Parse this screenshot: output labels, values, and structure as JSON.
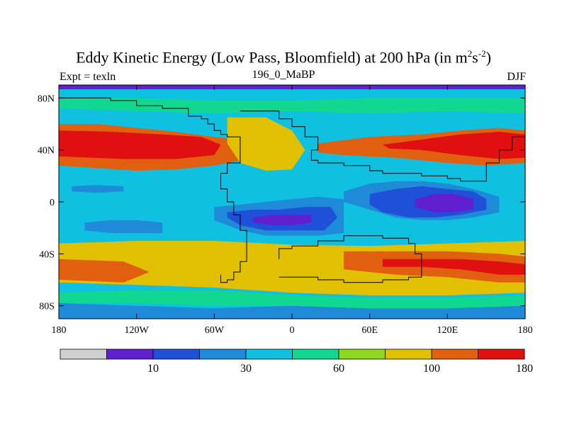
{
  "chart_data": {
    "type": "heatmap",
    "title_main": "Eddy Kinetic Energy (Low Pass, Bloomfield) at 200 hPa (in m",
    "title_units_sup1": "2",
    "title_units_s": "s",
    "title_units_sup2": "-2",
    "title_close": ")",
    "left_label": "Expt = texln",
    "center_label": "196_0_MaBP",
    "right_label": "DJF",
    "x_ticks": [
      {
        "value": -180,
        "label": "180"
      },
      {
        "value": -120,
        "label": "120W"
      },
      {
        "value": -60,
        "label": "60W"
      },
      {
        "value": 0,
        "label": "0"
      },
      {
        "value": 60,
        "label": "60E"
      },
      {
        "value": 120,
        "label": "120E"
      },
      {
        "value": 180,
        "label": "180"
      }
    ],
    "y_ticks": [
      {
        "value": 80,
        "label": "80N"
      },
      {
        "value": 40,
        "label": "40N"
      },
      {
        "value": 0,
        "label": "0"
      },
      {
        "value": -40,
        "label": "40S"
      },
      {
        "value": -80,
        "label": "80S"
      }
    ],
    "xlim": [
      -180,
      180
    ],
    "ylim": [
      -90,
      90
    ],
    "colorbar": {
      "colors": [
        "#d0d0d0",
        "#6020d0",
        "#1e50d8",
        "#1e8ad8",
        "#10c0e0",
        "#10d890",
        "#90d820",
        "#e0c000",
        "#e06010",
        "#e01010"
      ],
      "labels": [
        {
          "boundary": 2,
          "label": "10"
        },
        {
          "boundary": 4,
          "label": "30"
        },
        {
          "boundary": 6,
          "label": "60"
        },
        {
          "boundary": 8,
          "label": "100"
        },
        {
          "boundary": 10,
          "label": "180"
        }
      ]
    },
    "background_level": 4,
    "regions": [
      {
        "name": "nh-band-orange",
        "level": 8,
        "x": [
          -180,
          -150,
          -120,
          -90,
          -60,
          -40,
          -40,
          -60,
          -90,
          -120,
          -150,
          -180
        ],
        "y": [
          60,
          60,
          57,
          54,
          50,
          48,
          32,
          28,
          25,
          24,
          26,
          28
        ]
      },
      {
        "name": "nh-band-red",
        "level": 9,
        "x": [
          -180,
          -140,
          -100,
          -70,
          -55,
          -60,
          -90,
          -130,
          -180
        ],
        "y": [
          55,
          54,
          52,
          50,
          44,
          36,
          33,
          33,
          35
        ]
      },
      {
        "name": "atlantic-orange",
        "level": 7,
        "x": [
          -50,
          -20,
          0,
          10,
          0,
          -20,
          -40,
          -50
        ],
        "y": [
          65,
          65,
          55,
          40,
          25,
          24,
          30,
          45
        ]
      },
      {
        "name": "asia-band-orange",
        "level": 8,
        "x": [
          20,
          60,
          100,
          130,
          160,
          180,
          180,
          150,
          120,
          80,
          40,
          20
        ],
        "y": [
          45,
          50,
          52,
          55,
          57,
          55,
          30,
          28,
          30,
          34,
          36,
          38
        ]
      },
      {
        "name": "asia-band-red",
        "level": 9,
        "x": [
          70,
          100,
          130,
          160,
          180,
          180,
          160,
          130,
          100,
          75
        ],
        "y": [
          44,
          48,
          52,
          54,
          52,
          34,
          33,
          36,
          40,
          41
        ]
      },
      {
        "name": "arctic-green",
        "level": 5,
        "x": [
          -180,
          -120,
          -60,
          0,
          60,
          120,
          180,
          180,
          120,
          60,
          0,
          -60,
          -120,
          -180
        ],
        "y": [
          80,
          80,
          78,
          78,
          80,
          80,
          80,
          68,
          70,
          68,
          70,
          68,
          70,
          72
        ]
      },
      {
        "name": "tropic-east-blue",
        "level": 3,
        "x": [
          40,
          60,
          80,
          100,
          120,
          140,
          160,
          160,
          140,
          120,
          100,
          80,
          60,
          40
        ],
        "y": [
          8,
          14,
          16,
          16,
          14,
          10,
          4,
          -8,
          -12,
          -14,
          -14,
          -12,
          -6,
          0
        ]
      },
      {
        "name": "tropic-east-dark",
        "level": 2,
        "x": [
          60,
          80,
          100,
          120,
          140,
          150,
          150,
          130,
          110,
          90,
          70,
          60
        ],
        "y": [
          6,
          10,
          12,
          10,
          8,
          2,
          -6,
          -10,
          -12,
          -12,
          -8,
          -2
        ]
      },
      {
        "name": "tropic-east-purple",
        "level": 1,
        "x": [
          95,
          110,
          125,
          140,
          140,
          125,
          110,
          95
        ],
        "y": [
          2,
          6,
          6,
          2,
          -6,
          -8,
          -8,
          -4
        ]
      },
      {
        "name": "tropic-atl-blue",
        "level": 3,
        "x": [
          -60,
          -40,
          -20,
          0,
          20,
          40,
          40,
          20,
          0,
          -20,
          -40,
          -60
        ],
        "y": [
          -4,
          -2,
          0,
          2,
          4,
          2,
          -24,
          -26,
          -26,
          -26,
          -22,
          -14
        ]
      },
      {
        "name": "tropic-atl-dark",
        "level": 2,
        "x": [
          -50,
          -30,
          -10,
          10,
          30,
          35,
          25,
          0,
          -20,
          -40,
          -50
        ],
        "y": [
          -8,
          -6,
          -6,
          -4,
          -4,
          -12,
          -22,
          -22,
          -22,
          -18,
          -12
        ]
      },
      {
        "name": "tropic-atl-purple",
        "level": 1,
        "x": [
          -30,
          -15,
          0,
          15,
          15,
          0,
          -15,
          -30
        ],
        "y": [
          -12,
          -10,
          -10,
          -10,
          -16,
          -18,
          -18,
          -16
        ]
      },
      {
        "name": "pacific-eq-blue",
        "level": 3,
        "x": [
          -160,
          -140,
          -120,
          -100,
          -100,
          -120,
          -140,
          -160
        ],
        "y": [
          -16,
          -14,
          -14,
          -16,
          -24,
          -24,
          -24,
          -22
        ]
      },
      {
        "name": "pacific-n-blue",
        "level": 3,
        "x": [
          -170,
          -150,
          -130,
          -130,
          -150,
          -170
        ],
        "y": [
          12,
          13,
          12,
          8,
          7,
          8
        ]
      },
      {
        "name": "sh-band-yellow",
        "level": 7,
        "x": [
          -180,
          -120,
          -60,
          0,
          60,
          120,
          180,
          180,
          120,
          60,
          0,
          -60,
          -120,
          -180
        ],
        "y": [
          -32,
          -30,
          -30,
          -33,
          -34,
          -32,
          -30,
          -70,
          -72,
          -72,
          -70,
          -66,
          -64,
          -62
        ]
      },
      {
        "name": "sh-band-orange",
        "level": 8,
        "x": [
          -180,
          -130,
          -110,
          -130,
          -180
        ],
        "y": [
          -44,
          -46,
          -54,
          -62,
          -60
        ]
      },
      {
        "name": "sh-band-orange-east",
        "level": 8,
        "x": [
          40,
          80,
          120,
          160,
          180,
          180,
          160,
          120,
          80,
          40
        ],
        "y": [
          -38,
          -38,
          -38,
          -40,
          -42,
          -62,
          -62,
          -58,
          -56,
          -52
        ]
      },
      {
        "name": "sh-band-red-east",
        "level": 9,
        "x": [
          70,
          100,
          130,
          160,
          180,
          180,
          160,
          130,
          100,
          70
        ],
        "y": [
          -44,
          -44,
          -44,
          -46,
          -48,
          -56,
          -56,
          -52,
          -50,
          -50
        ]
      },
      {
        "name": "antarctic-blue",
        "level": 3,
        "x": [
          -180,
          -120,
          -60,
          0,
          60,
          120,
          180,
          180,
          -180
        ],
        "y": [
          -78,
          -80,
          -82,
          -80,
          -82,
          -80,
          -78,
          -90,
          -90
        ]
      },
      {
        "name": "sh-green",
        "level": 5,
        "x": [
          -180,
          -120,
          -60,
          0,
          60,
          120,
          180,
          180,
          120,
          60,
          0,
          -60,
          -120,
          -180
        ],
        "y": [
          -70,
          -68,
          -68,
          -72,
          -74,
          -74,
          -72,
          -80,
          -82,
          -82,
          -80,
          -80,
          -78,
          -78
        ]
      }
    ],
    "boundary_lines": [
      {
        "name": "continent-west",
        "x": [
          -180,
          -140,
          -120,
          -100,
          -80,
          -70,
          -65,
          -60,
          -55,
          -50,
          -40,
          -40,
          -50,
          -55,
          -55,
          -50,
          -45,
          -40,
          -35,
          -35,
          -40,
          -45,
          -50,
          -55,
          -55
        ],
        "y": [
          80,
          78,
          74,
          72,
          66,
          64,
          60,
          55,
          52,
          50,
          40,
          30,
          22,
          18,
          10,
          0,
          -10,
          -22,
          -34,
          -46,
          -54,
          -60,
          -62,
          -60,
          -56
        ]
      },
      {
        "name": "continent-east",
        "x": [
          -40,
          -20,
          -10,
          0,
          10,
          20,
          20,
          15,
          20,
          40,
          60,
          70,
          100,
          120,
          130,
          150,
          150,
          160,
          170,
          180
        ],
        "y": [
          70,
          70,
          64,
          58,
          50,
          45,
          40,
          32,
          30,
          28,
          24,
          22,
          20,
          18,
          16,
          20,
          30,
          40,
          50,
          60
        ]
      },
      {
        "name": "southern-ring",
        "x": [
          -10,
          20,
          40,
          70,
          90,
          100,
          100,
          95,
          90,
          70,
          40,
          20,
          0,
          -10
        ],
        "y": [
          -58,
          -60,
          -62,
          -60,
          -58,
          -50,
          -40,
          -32,
          -28,
          -26,
          -30,
          -34,
          -36,
          -44
        ]
      }
    ]
  }
}
